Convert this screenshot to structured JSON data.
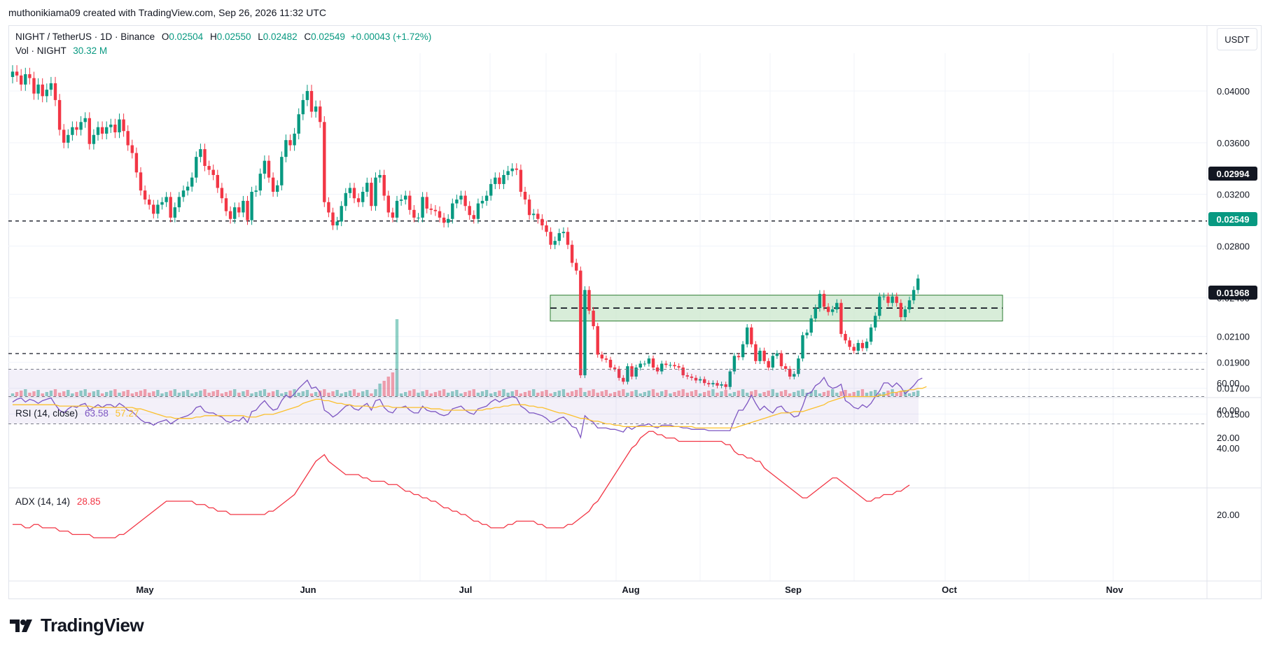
{
  "header": {
    "attribution": "muthonikiama09 created with TradingView.com, Sep 26, 2026 11:32 UTC"
  },
  "legend": {
    "symbol": "NIGHT / TetherUS · 1D · Binance",
    "open_label": "O",
    "open": "0.02504",
    "high_label": "H",
    "high": "0.02550",
    "low_label": "L",
    "low": "0.02482",
    "close_label": "C",
    "close": "0.02549",
    "change": "+0.00043 (+1.72%)",
    "vol_label": "Vol · NIGHT",
    "vol": "30.32 M",
    "rsi_label": "RSI (14, close)",
    "rsi_value": "63.58",
    "rsi_ma": "57.27",
    "adx_label": "ADX (14, 14)",
    "adx_value": "28.85"
  },
  "currency_button": "USDT",
  "price_tags": {
    "resistance": "0.02994",
    "last": "0.02549",
    "support": "0.01968"
  },
  "logo_text": "TradingView",
  "colors": {
    "up": "#089981",
    "down": "#f23645",
    "rsi": "#7e57c2",
    "rsi_ma": "#fbc02d",
    "adx": "#f23645",
    "zone": "#c8e6c9"
  },
  "chart_data": {
    "type": "candlestick",
    "price_axis_ticks": [
      "0.04000",
      "0.03600",
      "0.03200",
      "0.02800",
      "0.02400",
      "0.02100",
      "0.01900",
      "0.01700",
      "0.01500"
    ],
    "rsi_axis_ticks": [
      "60.00",
      "40.00",
      "20.00"
    ],
    "adx_axis_ticks": [
      "40.00",
      "20.00"
    ],
    "x_ticks": [
      "May",
      "Jun",
      "Jul",
      "Aug",
      "Sep",
      "Oct",
      "Nov"
    ],
    "horizontal_levels": [
      0.02994,
      0.01968
    ],
    "zone": {
      "low": 0.0222,
      "high": 0.0242,
      "mid": 0.0232
    },
    "rsi_bands": [
      70,
      50,
      30
    ],
    "close": [
      0.0415,
      0.0412,
      0.0405,
      0.0413,
      0.041,
      0.0398,
      0.0405,
      0.0396,
      0.0401,
      0.0406,
      0.0393,
      0.037,
      0.036,
      0.0366,
      0.0372,
      0.037,
      0.0376,
      0.0379,
      0.0359,
      0.0366,
      0.0372,
      0.0367,
      0.0372,
      0.0374,
      0.0368,
      0.0378,
      0.0369,
      0.0358,
      0.0352,
      0.0337,
      0.0323,
      0.0316,
      0.0312,
      0.0305,
      0.0312,
      0.0314,
      0.0318,
      0.0302,
      0.031,
      0.0318,
      0.0323,
      0.0326,
      0.0333,
      0.0349,
      0.0355,
      0.0342,
      0.0339,
      0.0335,
      0.0325,
      0.0317,
      0.0307,
      0.0301,
      0.031,
      0.0306,
      0.0315,
      0.03,
      0.0322,
      0.0323,
      0.0336,
      0.0346,
      0.0333,
      0.0322,
      0.0327,
      0.0349,
      0.0362,
      0.0358,
      0.0367,
      0.0382,
      0.0393,
      0.04,
      0.0384,
      0.0388,
      0.0376,
      0.0314,
      0.0306,
      0.0296,
      0.0299,
      0.0311,
      0.0321,
      0.0325,
      0.0317,
      0.0314,
      0.0322,
      0.0329,
      0.0311,
      0.0333,
      0.0335,
      0.0319,
      0.0306,
      0.0302,
      0.0315,
      0.0316,
      0.0319,
      0.0308,
      0.0302,
      0.0302,
      0.0318,
      0.0309,
      0.0308,
      0.0307,
      0.0302,
      0.0298,
      0.0301,
      0.0313,
      0.0316,
      0.0319,
      0.0311,
      0.0304,
      0.0301,
      0.0313,
      0.0315,
      0.0319,
      0.0328,
      0.0333,
      0.0328,
      0.0335,
      0.0338,
      0.034,
      0.0339,
      0.0322,
      0.0316,
      0.0304,
      0.0305,
      0.0301,
      0.0296,
      0.0291,
      0.0281,
      0.0284,
      0.029,
      0.0291,
      0.0281,
      0.0267,
      0.0261,
      0.018,
      0.0246,
      0.023,
      0.0218,
      0.0196,
      0.0193,
      0.0192,
      0.0186,
      0.0185,
      0.0178,
      0.0175,
      0.0187,
      0.0179,
      0.0186,
      0.0189,
      0.0189,
      0.0193,
      0.0186,
      0.0183,
      0.0189,
      0.0188,
      0.0188,
      0.0187,
      0.0186,
      0.018,
      0.0179,
      0.0178,
      0.0176,
      0.0177,
      0.0174,
      0.0173,
      0.0174,
      0.0172,
      0.0173,
      0.0171,
      0.0183,
      0.0195,
      0.0194,
      0.0204,
      0.0217,
      0.0204,
      0.0191,
      0.0199,
      0.0191,
      0.0186,
      0.0195,
      0.0197,
      0.0187,
      0.0185,
      0.0179,
      0.0181,
      0.0193,
      0.0211,
      0.0213,
      0.0224,
      0.0232,
      0.0243,
      0.0233,
      0.0229,
      0.0231,
      0.0236,
      0.0212,
      0.0207,
      0.0202,
      0.0199,
      0.0205,
      0.0201,
      0.0206,
      0.0217,
      0.0226,
      0.0241,
      0.0241,
      0.0236,
      0.0241,
      0.0236,
      0.0225,
      0.0231,
      0.0238,
      0.0246,
      0.02549
    ],
    "volume_note": "histogram in thousands of NIGHT (relative)",
    "rsi": [
      46,
      48,
      49,
      46,
      48,
      47,
      45,
      47,
      48,
      49,
      44,
      40,
      38,
      41,
      43,
      42,
      44,
      45,
      40,
      42,
      44,
      42,
      44,
      44,
      42,
      45,
      43,
      40,
      39,
      36,
      33,
      31,
      31,
      29,
      31,
      32,
      33,
      30,
      32,
      34,
      35,
      36,
      38,
      42,
      43,
      39,
      38,
      38,
      36,
      35,
      32,
      31,
      33,
      32,
      35,
      31,
      39,
      40,
      44,
      47,
      43,
      40,
      41,
      47,
      51,
      49,
      52,
      56,
      59,
      62,
      56,
      57,
      53,
      40,
      38,
      35,
      37,
      40,
      43,
      44,
      41,
      40,
      43,
      45,
      40,
      47,
      48,
      42,
      39,
      38,
      42,
      42,
      43,
      40,
      38,
      38,
      43,
      40,
      39,
      39,
      37,
      36,
      37,
      41,
      42,
      43,
      40,
      38,
      37,
      41,
      42,
      43,
      46,
      48,
      46,
      48,
      49,
      50,
      49,
      43,
      41,
      38,
      38,
      37,
      36,
      34,
      31,
      32,
      34,
      35,
      32,
      28,
      27,
      20,
      36,
      33,
      31,
      27,
      27,
      27,
      26,
      26,
      25,
      24,
      28,
      26,
      28,
      29,
      29,
      30,
      28,
      27,
      29,
      29,
      29,
      28,
      28,
      27,
      27,
      26,
      26,
      26,
      26,
      25,
      25,
      25,
      25,
      25,
      25,
      33,
      40,
      40,
      45,
      51,
      45,
      40,
      43,
      40,
      38,
      42,
      43,
      39,
      38,
      35,
      36,
      43,
      52,
      53,
      58,
      60,
      64,
      58,
      56,
      57,
      59,
      47,
      45,
      42,
      41,
      44,
      42,
      45,
      50,
      54,
      60,
      60,
      57,
      60,
      57,
      52,
      55,
      58,
      62,
      63.58
    ],
    "rsi_ma": [
      44,
      44,
      44,
      44,
      44,
      44,
      44,
      44,
      44,
      44,
      44,
      43,
      43,
      43,
      43,
      43,
      43,
      43,
      43,
      42,
      42,
      42,
      42,
      42,
      42,
      42,
      42,
      42,
      42,
      41,
      41,
      40,
      39,
      38,
      37,
      36,
      35,
      35,
      34,
      34,
      34,
      34,
      34,
      35,
      35,
      36,
      36,
      36,
      36,
      36,
      36,
      36,
      36,
      36,
      36,
      35,
      35,
      35,
      36,
      37,
      37,
      37,
      38,
      39,
      40,
      41,
      42,
      43,
      45,
      46,
      47,
      48,
      48,
      47,
      47,
      46,
      45,
      45,
      44,
      44,
      43,
      43,
      43,
      43,
      42,
      42,
      43,
      43,
      43,
      42,
      42,
      42,
      42,
      42,
      42,
      42,
      42,
      42,
      41,
      41,
      41,
      40,
      40,
      40,
      40,
      40,
      40,
      40,
      40,
      40,
      40,
      41,
      41,
      42,
      42,
      43,
      43,
      44,
      44,
      44,
      44,
      43,
      43,
      42,
      42,
      41,
      40,
      39,
      38,
      38,
      37,
      36,
      35,
      34,
      34,
      33,
      32,
      32,
      31,
      30,
      30,
      29,
      29,
      28,
      28,
      28,
      28,
      28,
      28,
      28,
      28,
      28,
      28,
      28,
      28,
      28,
      28,
      28,
      28,
      28,
      27,
      27,
      27,
      27,
      27,
      27,
      27,
      27,
      27,
      27,
      28,
      29,
      30,
      31,
      32,
      33,
      34,
      35,
      36,
      37,
      38,
      38,
      38,
      39,
      39,
      39,
      40,
      41,
      42,
      43,
      44,
      46,
      47,
      48,
      49,
      50,
      50,
      50,
      50,
      50,
      50,
      50,
      50,
      51,
      51,
      52,
      53,
      53,
      54,
      54,
      55,
      55,
      56,
      56,
      57.27
    ],
    "adx": [
      17,
      17,
      17,
      16,
      16,
      17,
      17,
      16,
      16,
      16,
      16,
      15,
      15,
      15,
      14,
      14,
      14,
      14,
      14,
      13,
      13,
      13,
      13,
      13,
      13,
      14,
      14,
      15,
      16,
      17,
      18,
      19,
      20,
      21,
      22,
      23,
      24,
      24,
      24,
      24,
      24,
      24,
      24,
      23,
      23,
      23,
      22,
      22,
      21,
      21,
      21,
      20,
      20,
      20,
      20,
      20,
      20,
      20,
      20,
      20,
      21,
      21,
      22,
      23,
      24,
      25,
      26,
      28,
      30,
      32,
      34,
      36,
      37,
      38,
      36,
      35,
      34,
      33,
      32,
      32,
      32,
      32,
      31,
      31,
      30,
      30,
      30,
      30,
      29,
      29,
      29,
      28,
      27,
      27,
      26,
      26,
      25,
      25,
      24,
      24,
      23,
      22,
      22,
      21,
      21,
      20,
      20,
      19,
      18,
      18,
      17,
      17,
      16,
      16,
      16,
      16,
      17,
      17,
      18,
      18,
      18,
      18,
      18,
      17,
      17,
      16,
      16,
      16,
      16,
      16,
      17,
      17,
      18,
      19,
      20,
      21,
      23,
      24,
      26,
      28,
      30,
      32,
      34,
      36,
      38,
      40,
      41,
      43,
      44,
      45,
      45,
      44,
      44,
      43,
      43,
      43,
      42,
      42,
      42,
      42,
      42,
      42,
      42,
      42,
      42,
      42,
      42,
      41,
      41,
      39,
      38,
      38,
      37,
      37,
      36,
      36,
      34,
      33,
      32,
      31,
      30,
      29,
      28,
      27,
      26,
      25,
      25,
      26,
      27,
      28,
      29,
      30,
      31,
      31,
      30,
      29,
      28,
      27,
      26,
      25,
      24,
      24,
      25,
      25,
      26,
      26,
      26,
      27,
      27,
      28,
      28.85
    ]
  }
}
